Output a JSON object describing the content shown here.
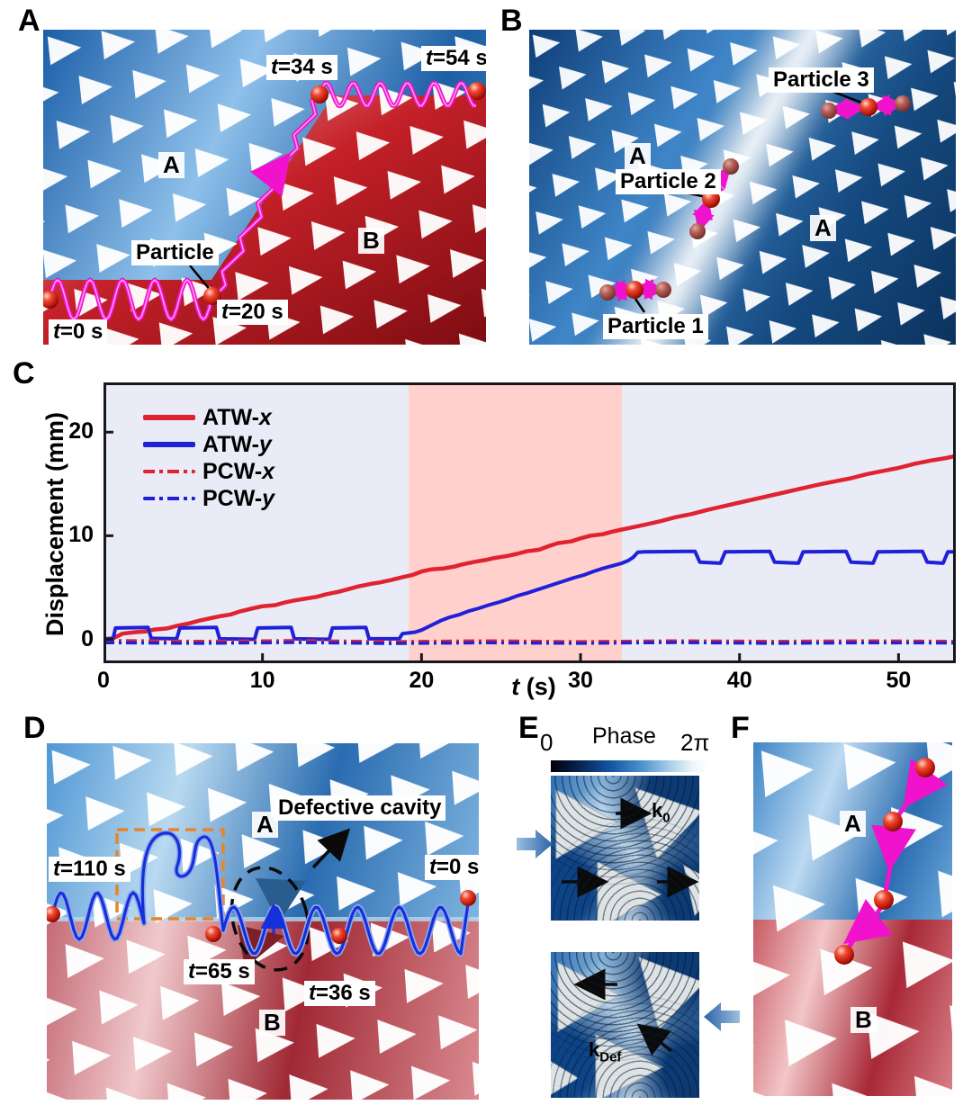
{
  "panels": {
    "a": {
      "letter": "A",
      "region_a": "A",
      "region_b": "B",
      "particle_label": "Particle",
      "t0": "t=0 s",
      "t20": "t=20 s",
      "t34": "t=34 s",
      "t54": "t=54 s"
    },
    "b": {
      "letter": "B",
      "region_a1": "A",
      "region_a2": "A",
      "particle1": "Particle 1",
      "particle2": "Particle 2",
      "particle3": "Particle 3"
    },
    "c": {
      "letter": "C"
    },
    "d": {
      "letter": "D",
      "region_a": "A",
      "region_b": "B",
      "cavity_label": "Defective cavity",
      "t110": "t=110 s",
      "t65": "t=65 s",
      "t36": "t=36 s",
      "t0": "t=0 s"
    },
    "e": {
      "letter": "E",
      "phase_title": "Phase",
      "cbar_min": "0",
      "cbar_max": "2π",
      "k0_base": "k",
      "k0_sub": "0",
      "kdef_base": "k",
      "kdef_sub": "Def"
    },
    "f": {
      "letter": "F",
      "region_a": "A",
      "region_b": "B"
    }
  },
  "chart_data": {
    "type": "line",
    "title": "",
    "xlabel": "t (s)",
    "ylabel": "Displacement (mm)",
    "xlim": [
      0,
      53.6
    ],
    "ylim": [
      -2.3,
      24.8
    ],
    "xticks": [
      0,
      10,
      20,
      30,
      40,
      50
    ],
    "yticks": [
      0,
      10,
      20
    ],
    "grid": false,
    "legend_position": "upper-left",
    "plot_bg": "#e9ecf7",
    "highlight_region": {
      "t_start": 19.2,
      "t_end": 32.6,
      "color": "#ffd0cc"
    },
    "series": [
      {
        "name": "ATW-x",
        "color": "#e02330",
        "style": "solid",
        "width": 4.5,
        "points": [
          [
            0,
            0
          ],
          [
            0.6,
            0.1
          ],
          [
            1.2,
            0.55
          ],
          [
            2,
            0.7
          ],
          [
            2.6,
            0.75
          ],
          [
            3.2,
            0.95
          ],
          [
            4,
            1.05
          ],
          [
            4.6,
            1.3
          ],
          [
            5.4,
            1.55
          ],
          [
            6,
            1.8
          ],
          [
            6.6,
            2.0
          ],
          [
            7.4,
            2.25
          ],
          [
            8,
            2.4
          ],
          [
            8.6,
            2.7
          ],
          [
            9.4,
            3.0
          ],
          [
            10,
            3.2
          ],
          [
            10.8,
            3.3
          ],
          [
            11.4,
            3.55
          ],
          [
            12,
            3.75
          ],
          [
            12.8,
            3.95
          ],
          [
            13.4,
            4.1
          ],
          [
            14,
            4.35
          ],
          [
            14.8,
            4.6
          ],
          [
            15.4,
            4.85
          ],
          [
            16,
            5.1
          ],
          [
            16.8,
            5.35
          ],
          [
            17.4,
            5.5
          ],
          [
            18,
            5.7
          ],
          [
            18.8,
            6.0
          ],
          [
            19.4,
            6.2
          ],
          [
            20,
            6.55
          ],
          [
            20.6,
            6.75
          ],
          [
            21.4,
            6.85
          ],
          [
            22,
            7.0
          ],
          [
            22.6,
            7.25
          ],
          [
            23.4,
            7.5
          ],
          [
            24,
            7.65
          ],
          [
            24.6,
            7.85
          ],
          [
            25.4,
            8.05
          ],
          [
            26,
            8.25
          ],
          [
            26.6,
            8.5
          ],
          [
            27.4,
            8.65
          ],
          [
            28,
            9.0
          ],
          [
            28.6,
            9.3
          ],
          [
            29.4,
            9.45
          ],
          [
            30,
            9.75
          ],
          [
            30.6,
            10.0
          ],
          [
            31.4,
            10.15
          ],
          [
            32,
            10.4
          ],
          [
            32.6,
            10.6
          ],
          [
            33.4,
            10.85
          ],
          [
            34,
            11.05
          ],
          [
            35,
            11.4
          ],
          [
            36,
            11.8
          ],
          [
            37,
            12.1
          ],
          [
            38,
            12.5
          ],
          [
            39,
            12.85
          ],
          [
            40,
            13.2
          ],
          [
            41,
            13.55
          ],
          [
            42,
            13.9
          ],
          [
            43,
            14.25
          ],
          [
            44,
            14.6
          ],
          [
            45,
            14.95
          ],
          [
            46,
            15.25
          ],
          [
            47,
            15.55
          ],
          [
            48,
            15.95
          ],
          [
            49,
            16.25
          ],
          [
            50,
            16.55
          ],
          [
            51,
            16.95
          ],
          [
            52,
            17.25
          ],
          [
            53,
            17.5
          ],
          [
            53.6,
            17.7
          ]
        ]
      },
      {
        "name": "ATW-y",
        "color": "#2020d8",
        "style": "solid",
        "width": 4,
        "points": [
          [
            0,
            0.05
          ],
          [
            0.6,
            0.05
          ],
          [
            0.75,
            1.1
          ],
          [
            2.8,
            1.15
          ],
          [
            3,
            0.1
          ],
          [
            4.6,
            0.05
          ],
          [
            4.8,
            1.1
          ],
          [
            7.1,
            1.15
          ],
          [
            7.3,
            0.05
          ],
          [
            9.5,
            0
          ],
          [
            9.7,
            1.1
          ],
          [
            11.8,
            1.15
          ],
          [
            12,
            0.05
          ],
          [
            14.2,
            0
          ],
          [
            14.4,
            1.1
          ],
          [
            16.5,
            1.15
          ],
          [
            16.7,
            0.05
          ],
          [
            18.6,
            0.05
          ],
          [
            18.8,
            0.55
          ],
          [
            19.6,
            0.7
          ],
          [
            20,
            0.9
          ],
          [
            20.6,
            1.35
          ],
          [
            21.2,
            1.8
          ],
          [
            21.8,
            2.15
          ],
          [
            22.4,
            2.4
          ],
          [
            23,
            2.75
          ],
          [
            23.6,
            3.0
          ],
          [
            24.2,
            3.3
          ],
          [
            24.8,
            3.55
          ],
          [
            25.4,
            3.85
          ],
          [
            26,
            4.2
          ],
          [
            26.6,
            4.45
          ],
          [
            27.2,
            4.75
          ],
          [
            27.8,
            5.05
          ],
          [
            28.4,
            5.35
          ],
          [
            29,
            5.65
          ],
          [
            29.6,
            5.95
          ],
          [
            30.2,
            6.2
          ],
          [
            30.8,
            6.55
          ],
          [
            31.4,
            6.85
          ],
          [
            32,
            7.1
          ],
          [
            32.6,
            7.35
          ],
          [
            33,
            7.6
          ],
          [
            33.3,
            7.9
          ],
          [
            33.6,
            8.4
          ],
          [
            34,
            8.45
          ],
          [
            37.2,
            8.5
          ],
          [
            37.5,
            7.45
          ],
          [
            38.8,
            7.35
          ],
          [
            39.1,
            8.45
          ],
          [
            41.9,
            8.5
          ],
          [
            42.2,
            7.45
          ],
          [
            43.7,
            7.35
          ],
          [
            44,
            8.45
          ],
          [
            46.7,
            8.5
          ],
          [
            47,
            7.45
          ],
          [
            48.4,
            7.35
          ],
          [
            48.7,
            8.45
          ],
          [
            51.5,
            8.5
          ],
          [
            51.8,
            7.45
          ],
          [
            52.8,
            7.35
          ],
          [
            53.1,
            8.45
          ],
          [
            53.6,
            8.45
          ]
        ]
      },
      {
        "name": "PCW-x",
        "color": "#e02330",
        "style": "dashdot",
        "width": 3.5,
        "points": [
          [
            0,
            -0.1
          ],
          [
            6,
            -0.2
          ],
          [
            12,
            -0.12
          ],
          [
            18,
            -0.22
          ],
          [
            24,
            -0.15
          ],
          [
            30,
            -0.22
          ],
          [
            36,
            -0.15
          ],
          [
            42,
            -0.2
          ],
          [
            48,
            -0.15
          ],
          [
            53.6,
            -0.2
          ]
        ]
      },
      {
        "name": "PCW-y",
        "color": "#2020d8",
        "style": "dashdot",
        "width": 3.5,
        "points": [
          [
            0,
            -0.32
          ],
          [
            6,
            -0.38
          ],
          [
            12,
            -0.3
          ],
          [
            18,
            -0.4
          ],
          [
            24,
            -0.33
          ],
          [
            30,
            -0.38
          ],
          [
            36,
            -0.3
          ],
          [
            42,
            -0.38
          ],
          [
            48,
            -0.33
          ],
          [
            53.6,
            -0.35
          ]
        ]
      }
    ]
  }
}
